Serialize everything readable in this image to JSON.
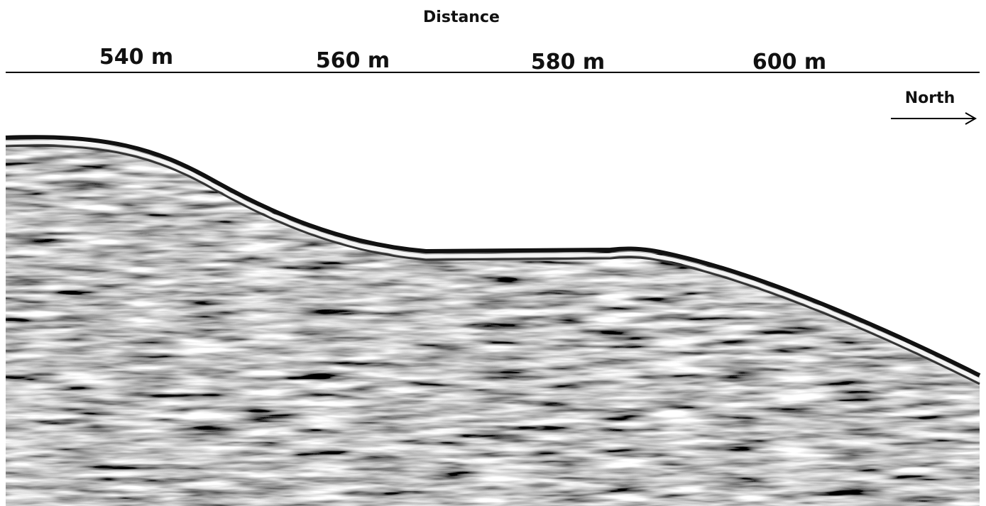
{
  "header": {
    "title": "Distance"
  },
  "axis": {
    "labels": [
      "540 m",
      "560 m",
      "580 m",
      "600 m"
    ]
  },
  "direction": {
    "label": "North"
  }
}
